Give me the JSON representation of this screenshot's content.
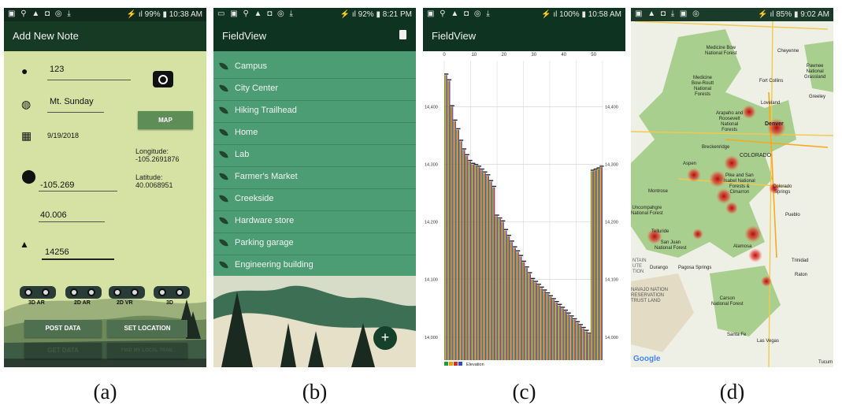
{
  "captions": [
    "(a)",
    "(b)",
    "(c)",
    "(d)"
  ],
  "panel_a": {
    "status_left": "▣ ⚲ ▲ ◘ ◎ ⤓",
    "status_right": "⚡ ıl 99% ▮ 10:38 AM",
    "title": "Add New Note",
    "fields": {
      "name": "123",
      "place": "Mt. Sunday",
      "date": "9/19/2018",
      "longitude_input": "-105.269",
      "latitude_input": "40.006",
      "elevation": "14256"
    },
    "map_button": "MAP",
    "longitude_label": "Longitude:",
    "longitude_value": "-105.2691876",
    "latitude_label": "Latitude:",
    "latitude_value": "40.0068951",
    "vr_labels": [
      "3D AR",
      "2D AR",
      "2D VR",
      "3D"
    ],
    "post_button": "POST DATA",
    "set_location_button": "SET LOCATION",
    "bottom_left_button": "GET DATA",
    "bottom_right_button": "FIND MY LOCAL TRAIL",
    "icons": [
      "person-icon",
      "globe-icon",
      "calendar-icon",
      "location-pin-icon",
      "mountain-icon",
      "camera-icon"
    ]
  },
  "panel_b": {
    "status_left": "▭ ▣ ⚲ ▲ ◘ ◎ ⤓",
    "status_right": "⚡ ıl 92% ▮ 8:21 PM",
    "title": "FieldView",
    "items": [
      "Campus",
      "City Center",
      "Hiking Trailhead",
      "Home",
      "Lab",
      "Farmer's Market",
      "Creekside",
      "Hardware store",
      "Parking garage",
      "Engineering building"
    ],
    "fab": "+",
    "icons": [
      "trash-icon",
      "leaf-icon",
      "add-icon"
    ]
  },
  "panel_c": {
    "status_left": "▣ ⚲ ▲ ◘ ◎ ⤓",
    "status_right": "⚡ ıl 100% ▮ 10:58 AM",
    "title": "FieldView"
  },
  "chart_data": {
    "type": "bar",
    "x_ticks": [
      "0",
      "10",
      "20",
      "30",
      "40",
      "50"
    ],
    "y_ticks": [
      "14,000",
      "14,100",
      "14,200",
      "14,300",
      "14,400"
    ],
    "ylim": [
      13960,
      14480
    ],
    "legend": [
      "Elevation"
    ],
    "colors": [
      "#1f9e3a",
      "#e8a10e",
      "#d62f1d",
      "#3249c8"
    ],
    "values": [
      14455,
      14445,
      14400,
      14375,
      14360,
      14340,
      14325,
      14315,
      14305,
      14300,
      14298,
      14295,
      14290,
      14285,
      14280,
      14270,
      14260,
      14210,
      14205,
      14200,
      14185,
      14175,
      14165,
      14155,
      14148,
      14140,
      14130,
      14120,
      14110,
      14100,
      14095,
      14090,
      14085,
      14080,
      14075,
      14070,
      14065,
      14060,
      14055,
      14050,
      14045,
      14040,
      14035,
      14030,
      14025,
      14020,
      14015,
      14010,
      14005,
      14288,
      14290,
      14292,
      14295
    ]
  },
  "panel_d": {
    "status_left": "▣ ▲ ◘ ⤓ ▣ ◎",
    "status_right": "⚡ ıl 85% ▮ 9:02 AM",
    "map_labels": {
      "medicine_bow": "Medicine Bow\nNational Forest",
      "cheyenne": "Cheyenne",
      "pawnee": "Pawnee\nNational\nGrassland",
      "medicine_bow_routt": "Medicine\nBow-Routt\nNational\nForests",
      "fort_collins": "Fort Collins",
      "greeley": "Greeley",
      "loveland": "Loveland",
      "arapaho": "Arapaho and\nRoosevelt\nNational\nForests",
      "denver": "Denver",
      "breckenridge": "Breckenridge",
      "colorado": "COLORADO",
      "aspen": "Aspen",
      "pike": "Pike and San\nIsabel National\nForests &\nCimarron",
      "colorado_springs": "Colorado\nSprings",
      "montrose": "Montrose",
      "uncompahgre": "Uncompahgre\nNational Forest",
      "pueblo": "Pueblo",
      "telluride": "Telluride",
      "san_juan": "San Juan\nNational Forest",
      "alamosa": "Alamosa",
      "trinidad": "Trinidad",
      "durango": "Durango",
      "pagosa": "Pagosa Springs",
      "navajo": "NAVAJO NATION\nRESERVATION\nTRUST LAND",
      "raton": "Raton",
      "carson": "Carson\nNational Forest",
      "santa_fe": "Santa Fe",
      "las_vegas": "Las Vegas",
      "mountain_left": "NTAIN\nUTE\nTION",
      "tucum": "Tucum",
      "google": "Google"
    }
  }
}
